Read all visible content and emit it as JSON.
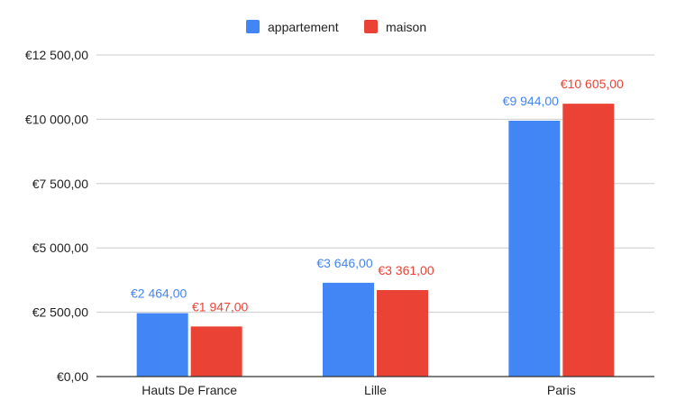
{
  "chart_data": {
    "type": "bar",
    "categories": [
      "Hauts De France",
      "Lille",
      "Paris"
    ],
    "series": [
      {
        "name": "appartement",
        "values": [
          2464,
          3646,
          9944
        ],
        "labels": [
          "€2 464,00",
          "€3 646,00",
          "€9 944,00"
        ],
        "color": "#4285f4"
      },
      {
        "name": "maison",
        "values": [
          1947,
          3361,
          10605
        ],
        "labels": [
          "€1 947,00",
          "€3 361,00",
          "€10 605,00"
        ],
        "color": "#ea4335"
      }
    ],
    "ylim": [
      0,
      12500
    ],
    "yticks": [
      0,
      2500,
      5000,
      7500,
      10000,
      12500
    ],
    "ytick_labels": [
      "€0,00",
      "€2 500,00",
      "€5 000,00",
      "€7 500,00",
      "€10 000,00",
      "€12 500,00"
    ],
    "grid": true,
    "legend_position": "top-center",
    "gridline_color": "#cccccc",
    "axis_color": "#333333"
  }
}
